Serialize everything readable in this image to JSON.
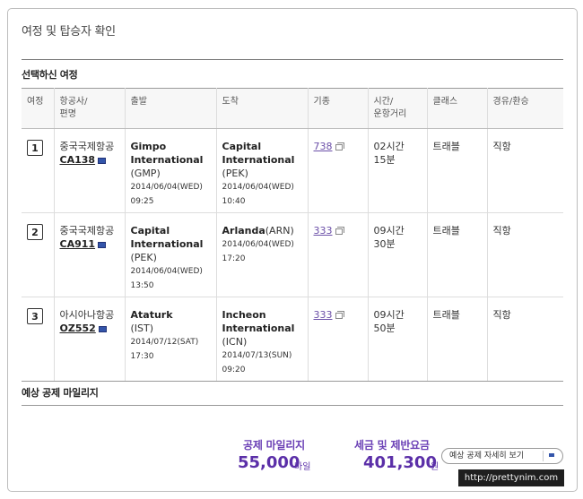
{
  "page": {
    "title": "여정 및 탑승자 확인",
    "section_itinerary": "선택하신 여정",
    "section_miles": "예상 공제 마일리지"
  },
  "table": {
    "headers": [
      "여정",
      "항공사/\n편명",
      "출발",
      "도착",
      "기종",
      "시간/\n운항거리",
      "클래스",
      "경유/환승"
    ],
    "rows": [
      {
        "num": "1",
        "airline": "중국국제항공",
        "flight": "CA138",
        "dep_name": "Gimpo International",
        "dep_code": "(GMP)",
        "dep_date": "2014/06/04(WED)",
        "dep_time": "09:25",
        "arr_name": "Capital International",
        "arr_code": "(PEK)",
        "arr_date": "2014/06/04(WED)",
        "arr_time": "10:40",
        "equipment": "738",
        "duration": "02시간\n15분",
        "class": "트래블",
        "transfer": "직항"
      },
      {
        "num": "2",
        "airline": "중국국제항공",
        "flight": "CA911",
        "dep_name": "Capital International",
        "dep_code": "(PEK)",
        "dep_date": "2014/06/04(WED)",
        "dep_time": "13:50",
        "arr_name": "Arlanda",
        "arr_code": "(ARN)",
        "arr_date": "2014/06/04(WED)",
        "arr_time": "17:20",
        "equipment": "333",
        "duration": "09시간\n30분",
        "class": "트래블",
        "transfer": "직항"
      },
      {
        "num": "3",
        "airline": "아시아나항공",
        "flight": "OZ552",
        "dep_name": "Ataturk",
        "dep_code": "(IST)",
        "dep_date": "2014/07/12(SAT)",
        "dep_time": "17:30",
        "arr_name": "Incheon International",
        "arr_code": "(ICN)",
        "arr_date": "2014/07/13(SUN)",
        "arr_time": "09:20",
        "equipment": "333",
        "duration": "09시간\n50분",
        "class": "트래블",
        "transfer": "직항"
      }
    ]
  },
  "miles": {
    "deduct_label": "공제 마일리지",
    "deduct_value": "55,000",
    "deduct_unit": "마일",
    "tax_label": "세금 및 제반요금",
    "tax_value": "401,300",
    "tax_unit": "원",
    "detail_button": "예상 공제 자세히 보기"
  },
  "watermark": "http://prettynim.com",
  "colors": {
    "accent_purple": "#5b2fa8",
    "link_purple": "#6b4fa8",
    "icon_blue": "#3355aa"
  }
}
